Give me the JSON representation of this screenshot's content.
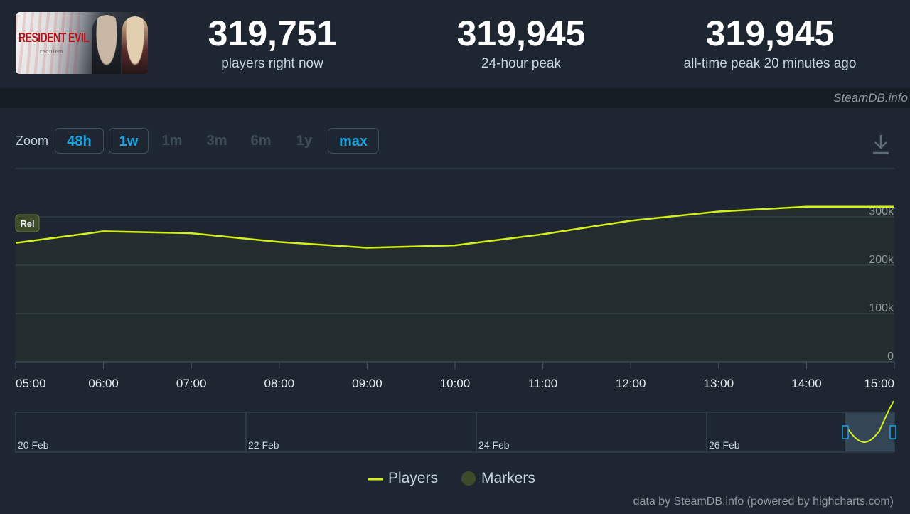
{
  "header": {
    "game_title_line1": "RESIDENT EVIL",
    "game_title_line2": "requiem",
    "stats": [
      {
        "value": "319,751",
        "label": "players right now"
      },
      {
        "value": "319,945",
        "label": "24-hour peak"
      },
      {
        "value": "319,945",
        "label": "all-time peak 20 minutes ago"
      }
    ],
    "credit": "SteamDB.info"
  },
  "zoom": {
    "label": "Zoom",
    "buttons": [
      {
        "label": "48h",
        "active": true
      },
      {
        "label": "1w",
        "active": true
      },
      {
        "label": "1m",
        "active": false
      },
      {
        "label": "3m",
        "active": false
      },
      {
        "label": "6m",
        "active": false
      },
      {
        "label": "1y",
        "active": false
      },
      {
        "label": "max",
        "active": true
      }
    ],
    "download_icon": "download-icon"
  },
  "chart_data": {
    "type": "line",
    "x": [
      "05:00",
      "06:00",
      "07:00",
      "08:00",
      "09:00",
      "10:00",
      "11:00",
      "12:00",
      "13:00",
      "14:00",
      "15:00"
    ],
    "series": [
      {
        "name": "Players",
        "values": [
          246000,
          270000,
          266000,
          248000,
          236000,
          241000,
          264000,
          292000,
          311000,
          321000,
          321000
        ]
      }
    ],
    "ylim": [
      0,
      400000
    ],
    "yticks": [
      {
        "value": 0,
        "label": "0"
      },
      {
        "value": 100000,
        "label": "100k"
      },
      {
        "value": 200000,
        "label": "200k"
      },
      {
        "value": 300000,
        "label": "300k"
      }
    ],
    "marker": {
      "label": "Rel",
      "x": "05:00"
    },
    "navigator_labels": [
      "20 Feb",
      "22 Feb",
      "24 Feb",
      "26 Feb"
    ],
    "legend": [
      {
        "name": "Players",
        "color": "#d4f016",
        "symbol": "line"
      },
      {
        "name": "Markers",
        "color": "#3e4b2a",
        "symbol": "circle"
      }
    ],
    "colors": {
      "line": "#d4f016",
      "grid": "#3a4552",
      "marker_bg": "#3e4b2a"
    }
  },
  "footer": {
    "credit": "data by SteamDB.info (powered by highcharts.com)"
  }
}
